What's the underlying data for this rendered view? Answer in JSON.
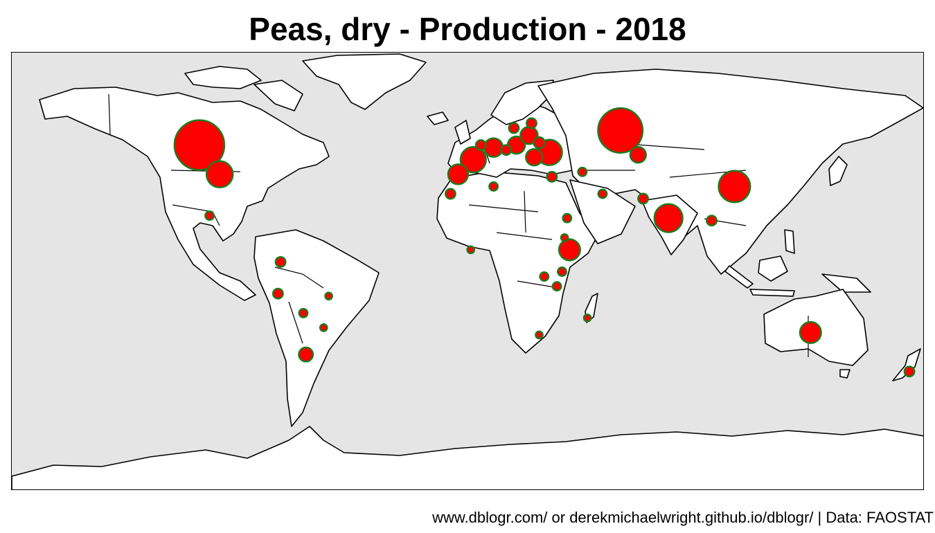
{
  "title": "Peas, dry - Production - 2018",
  "caption": "www.dblogr.com/ or derekmichaelwright.github.io/dblogr/ | Data: FAOSTAT",
  "colors": {
    "ocean": "#e5e5e5",
    "land": "#ffffff",
    "bubble_fill": "#ff0000",
    "bubble_outline": "#1f7a1f",
    "border": "#000000"
  },
  "chart_data": {
    "type": "scatter",
    "projection": "equirectangular",
    "xlim": [
      -180,
      180
    ],
    "ylim": [
      -90,
      90
    ],
    "xlabel": "",
    "ylabel": "",
    "legend": "none",
    "points": [
      {
        "lon": -106,
        "lat": 52,
        "size": 100
      },
      {
        "lon": -98,
        "lat": 40,
        "size": 28
      },
      {
        "lon": 60,
        "lat": 58,
        "size": 80
      },
      {
        "lon": 105,
        "lat": 35,
        "size": 40
      },
      {
        "lon": 79,
        "lat": 22,
        "size": 32
      },
      {
        "lon": 2,
        "lat": 46,
        "size": 26
      },
      {
        "lon": 32,
        "lat": 49,
        "size": 26
      },
      {
        "lon": -4,
        "lat": 40,
        "size": 16
      },
      {
        "lon": 10,
        "lat": 51,
        "size": 14
      },
      {
        "lon": 19,
        "lat": 52,
        "size": 12
      },
      {
        "lon": 26,
        "lat": 47,
        "size": 11
      },
      {
        "lon": 24,
        "lat": 56,
        "size": 12
      },
      {
        "lon": 40,
        "lat": 9,
        "size": 18
      },
      {
        "lon": 135,
        "lat": -25,
        "size": 18
      },
      {
        "lon": 67,
        "lat": 48,
        "size": 10
      },
      {
        "lon": -64,
        "lat": -34,
        "size": 8
      },
      {
        "lon": -75,
        "lat": -9,
        "size": 4
      },
      {
        "lon": -74,
        "lat": 4,
        "size": 4
      },
      {
        "lon": 96,
        "lat": 21,
        "size": 4
      },
      {
        "lon": 69,
        "lat": 30,
        "size": 4
      },
      {
        "lon": 37,
        "lat": 0,
        "size": 3
      },
      {
        "lon": 35,
        "lat": -6,
        "size": 3
      },
      {
        "lon": 30,
        "lat": -2,
        "size": 3
      },
      {
        "lon": 5,
        "lat": 52,
        "size": 4
      },
      {
        "lon": 15,
        "lat": 50,
        "size": 4
      },
      {
        "lon": 18,
        "lat": 59,
        "size": 4
      },
      {
        "lon": 25,
        "lat": 61,
        "size": 4
      },
      {
        "lon": 28,
        "lat": 53,
        "size": 5
      },
      {
        "lon": 33,
        "lat": 39,
        "size": 4
      },
      {
        "lon": 45,
        "lat": 41,
        "size": 3
      },
      {
        "lon": 53,
        "lat": 32,
        "size": 3
      },
      {
        "lon": 10,
        "lat": 35,
        "size": 3
      },
      {
        "lon": -7,
        "lat": 32,
        "size": 4
      },
      {
        "lon": 39,
        "lat": 22,
        "size": 3
      },
      {
        "lon": 174,
        "lat": -41,
        "size": 4
      },
      {
        "lon": -102,
        "lat": 23,
        "size": 3
      },
      {
        "lon": -65,
        "lat": -17,
        "size": 3
      },
      {
        "lon": -57,
        "lat": -23,
        "size": 2
      },
      {
        "lon": -55,
        "lat": -10,
        "size": 2
      },
      {
        "lon": 28,
        "lat": -26,
        "size": 2
      },
      {
        "lon": 1,
        "lat": 9,
        "size": 2
      },
      {
        "lon": 47,
        "lat": -19,
        "size": 2
      },
      {
        "lon": 38,
        "lat": 14,
        "size": 2
      }
    ]
  }
}
